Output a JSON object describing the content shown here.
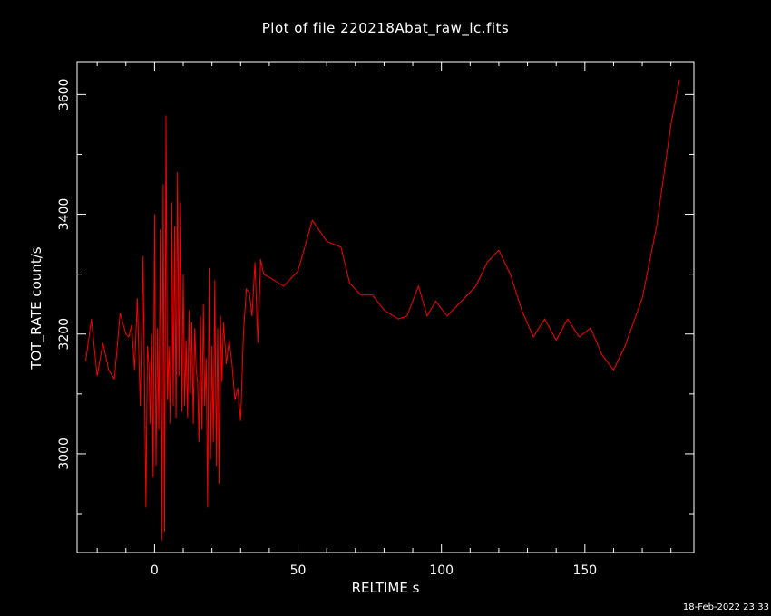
{
  "chart_data": {
    "type": "line",
    "title": "Plot of file 220218Abat_raw_lc.fits",
    "xlabel": "RELTIME  s",
    "ylabel": "TOT_RATE  count/s",
    "xlim": [
      -27,
      188
    ],
    "ylim": [
      2835,
      3655
    ],
    "xticks": [
      0,
      50,
      100,
      150
    ],
    "yticks": [
      3000,
      3200,
      3400,
      3600
    ],
    "line_color": "#ff0000",
    "grid": false,
    "x": [
      -24,
      -22,
      -20,
      -18,
      -16,
      -14,
      -12,
      -10,
      -9,
      -8,
      -7,
      -6,
      -5,
      -4,
      -3,
      -2.5,
      -2,
      -1.5,
      -1,
      -0.5,
      0,
      0.5,
      1,
      1.5,
      2,
      2.5,
      3,
      3.5,
      4,
      4.5,
      5,
      5.5,
      6,
      6.5,
      7,
      7.5,
      8,
      8.5,
      9,
      9.5,
      10,
      10.5,
      11,
      11.5,
      12,
      12.5,
      13,
      13.5,
      14,
      14.5,
      15,
      15.5,
      16,
      16.5,
      17,
      17.5,
      18,
      18.5,
      19,
      19.5,
      20,
      20.5,
      21,
      21.5,
      22,
      22.5,
      23,
      23.5,
      24,
      25,
      26,
      27,
      28,
      29,
      30,
      31,
      32,
      33,
      34,
      35,
      36,
      37,
      38,
      40,
      45,
      50,
      55,
      60,
      65,
      68,
      72,
      76,
      80,
      85,
      88,
      92,
      95,
      98,
      102,
      108,
      112,
      116,
      120,
      124,
      128,
      132,
      136,
      140,
      144,
      148,
      152,
      156,
      160,
      164,
      170,
      175,
      180,
      183
    ],
    "y": [
      3155,
      3225,
      3130,
      3185,
      3140,
      3125,
      3235,
      3200,
      3195,
      3215,
      3140,
      3260,
      3080,
      3330,
      2910,
      3180,
      3150,
      3050,
      3200,
      2960,
      3400,
      2980,
      3210,
      3040,
      3375,
      2855,
      3450,
      2870,
      3565,
      3090,
      3180,
      3050,
      3420,
      3080,
      3380,
      3060,
      3470,
      3130,
      3420,
      3070,
      3300,
      3080,
      3190,
      3060,
      3240,
      3100,
      3220,
      3050,
      3210,
      3140,
      3120,
      3020,
      3230,
      3040,
      3250,
      3080,
      3160,
      2910,
      3310,
      2990,
      3180,
      3020,
      3290,
      2980,
      3210,
      2950,
      3230,
      3120,
      3220,
      3150,
      3190,
      3150,
      3090,
      3110,
      3055,
      3200,
      3275,
      3270,
      3230,
      3320,
      3185,
      3325,
      3300,
      3295,
      3280,
      3305,
      3390,
      3355,
      3345,
      3285,
      3265,
      3265,
      3240,
      3225,
      3230,
      3280,
      3230,
      3255,
      3230,
      3260,
      3280,
      3320,
      3340,
      3300,
      3240,
      3195,
      3225,
      3190,
      3225,
      3195,
      3210,
      3165,
      3140,
      3180,
      3260,
      3380,
      3550,
      3625
    ]
  },
  "footer": {
    "timestamp": "18-Feb-2022 23:33"
  }
}
